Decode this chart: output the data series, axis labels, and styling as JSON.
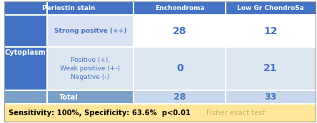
{
  "header_col1": "Periostin stain",
  "header_col2": "Enchondroma",
  "header_col3": "Low Gr ChondroSa",
  "row_label_main": "Cytoplasm",
  "row1_label": "Strong positve (++)",
  "row1_col2": "28",
  "row1_col3": "12",
  "row2_label_line1": "Positive (+),",
  "row2_label_line2": "Weak positive (+-)",
  "row2_label_line3": "Negative (-)",
  "row2_col2": "0",
  "row2_col3": "21",
  "total_label": "Total",
  "total_col2": "28",
  "total_col3": "33",
  "footer_bold": "Sensitivity: 100%, Specificity: 63.6%  p<0.01",
  "footer_fisher": "Fisher exact test",
  "header_bg": "#4472C4",
  "header_text": "#FFFFFF",
  "cytoplasm_bg": "#4472C4",
  "cytoplasm_text": "#FFFFFF",
  "row1_bg": "#FFFFFF",
  "row1_label_bg": "#D9E2F3",
  "row2_bg": "#DCE6F1",
  "total_left_bg": "#7BA0C8",
  "total_right_bg": "#C8D8EC",
  "data_text": "#4472C4",
  "footer_bg": "#FFE699",
  "footer_text_bold": "#000000",
  "footer_text_fisher": "#C8B060",
  "label_text_color": "#4472C4",
  "figw": 4.44,
  "figh": 1.73,
  "dpi": 100
}
